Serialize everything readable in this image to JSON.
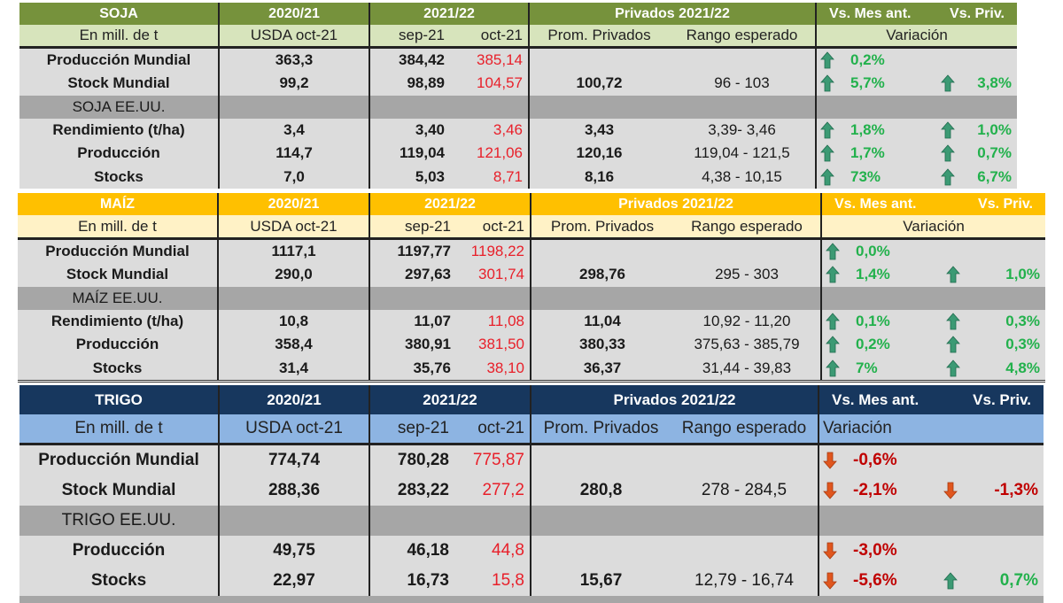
{
  "colors": {
    "up_arrow": "#3c9a74",
    "down_arrow": "#e0561e",
    "up_text": "#22b14c",
    "down_text": "#c00000",
    "oct_text": "#e8202a"
  },
  "tables": [
    {
      "id": "soja",
      "colors": {
        "header_bg": "#76923c",
        "header_text": "#ffffff",
        "sub_bg": "#d7e4bc"
      },
      "header": {
        "title": "SOJA",
        "y2020": "2020/21",
        "y2021": "2021/22",
        "priv": "Privados 2021/22",
        "var1": "Vs. Mes  ant.",
        "var2": "Vs. Priv."
      },
      "subheader": {
        "unit": "En mill. de t",
        "usda": "USDA oct-21",
        "sep": "sep-21",
        "oct": "oct-21",
        "prom": "Prom. Privados",
        "rango": "Rango esperado",
        "var": "Variación"
      },
      "rows": [
        {
          "label": "Producción Mundial",
          "usda": "363,3",
          "sep": "384,42",
          "oct": "385,14",
          "prom": "",
          "rango": "",
          "v1": {
            "dir": "up",
            "value": "0,2%"
          },
          "v2": null
        },
        {
          "label": "Stock Mundial",
          "usda": "99,2",
          "sep": "98,89",
          "oct": "104,57",
          "prom": "100,72",
          "rango": "96 - 103",
          "v1": {
            "dir": "up",
            "value": "5,7%"
          },
          "v2": {
            "dir": "up",
            "value": "3,8%"
          }
        },
        {
          "section": "SOJA EE.UU."
        },
        {
          "label": "Rendimiento (t/ha)",
          "usda": "3,4",
          "sep": "3,40",
          "oct": "3,46",
          "prom": "3,43",
          "rango": "3,39- 3,46",
          "v1": {
            "dir": "up",
            "value": "1,8%"
          },
          "v2": {
            "dir": "up",
            "value": "1,0%"
          }
        },
        {
          "label": "Producción",
          "usda": "114,7",
          "sep": "119,04",
          "oct": "121,06",
          "prom": "120,16",
          "rango": "119,04 - 121,5",
          "v1": {
            "dir": "up",
            "value": "1,7%"
          },
          "v2": {
            "dir": "up",
            "value": "0,7%"
          }
        },
        {
          "label": "Stocks",
          "usda": "7,0",
          "sep": "5,03",
          "oct": "8,71",
          "prom": "8,16",
          "rango": "4,38 - 10,15",
          "v1": {
            "dir": "up",
            "value": "73%"
          },
          "v2": {
            "dir": "up",
            "value": "6,7%"
          }
        }
      ]
    },
    {
      "id": "maiz",
      "colors": {
        "header_bg": "#ffc000",
        "header_text": "#ffffff",
        "sub_bg": "#fff2c6"
      },
      "header": {
        "title": "MAÍZ",
        "y2020": "2020/21",
        "y2021": "2021/22",
        "priv": "Privados 2021/22",
        "var1": "Vs. Mes  ant.",
        "var2": "Vs. Priv."
      },
      "subheader": {
        "unit": "En mill. de t",
        "usda": "USDA oct-21",
        "sep": "sep-21",
        "oct": "oct-21",
        "prom": "Prom. Privados",
        "rango": "Rango esperado",
        "var": "Variación"
      },
      "rows": [
        {
          "label": "Producción Mundial",
          "usda": "1117,1",
          "sep": "1197,77",
          "oct": "1198,22",
          "prom": "",
          "rango": "",
          "v1": {
            "dir": "up",
            "value": "0,0%"
          },
          "v2": null
        },
        {
          "label": "Stock Mundial",
          "usda": "290,0",
          "sep": "297,63",
          "oct": "301,74",
          "prom": "298,76",
          "rango": "295 - 303",
          "v1": {
            "dir": "up",
            "value": "1,4%"
          },
          "v2": {
            "dir": "up",
            "value": "1,0%"
          }
        },
        {
          "section": "MAÍZ EE.UU."
        },
        {
          "label": "Rendimiento (t/ha)",
          "usda": "10,8",
          "sep": "11,07",
          "oct": "11,08",
          "prom": "11,04",
          "rango": "10,92 - 11,20",
          "v1": {
            "dir": "up",
            "value": "0,1%"
          },
          "v2": {
            "dir": "up",
            "value": "0,3%"
          }
        },
        {
          "label": "Producción",
          "usda": "358,4",
          "sep": "380,91",
          "oct": "381,50",
          "prom": "380,33",
          "rango": "375,63 - 385,79",
          "v1": {
            "dir": "up",
            "value": "0,2%"
          },
          "v2": {
            "dir": "up",
            "value": "0,3%"
          }
        },
        {
          "label": "Stocks",
          "usda": "31,4",
          "sep": "35,76",
          "oct": "38,10",
          "prom": "36,37",
          "rango": "31,44 - 39,83",
          "v1": {
            "dir": "up",
            "value": "7%"
          },
          "v2": {
            "dir": "up",
            "value": "4,8%"
          }
        }
      ]
    },
    {
      "id": "trigo",
      "colors": {
        "header_bg": "#17375e",
        "header_text": "#ffffff",
        "sub_bg": "#8db4e2"
      },
      "header": {
        "title": "TRIGO",
        "y2020": "2020/21",
        "y2021": "2021/22",
        "priv": "Privados 2021/22",
        "var1": "Vs. Mes  ant.",
        "var2": "Vs. Priv."
      },
      "subheader": {
        "unit": "En mill. de t",
        "usda": "USDA oct-21",
        "sep": "sep-21",
        "oct": "oct-21",
        "prom": "Prom. Privados",
        "rango": "Rango esperado",
        "var": "Variación"
      },
      "rows": [
        {
          "label": "Producción Mundial",
          "usda": "774,74",
          "sep": "780,28",
          "oct": "775,87",
          "prom": "",
          "rango": "",
          "v1": {
            "dir": "down",
            "value": "-0,6%"
          },
          "v2": null
        },
        {
          "label": "Stock Mundial",
          "usda": "288,36",
          "sep": "283,22",
          "oct": "277,2",
          "prom": "280,8",
          "rango": "278 - 284,5",
          "v1": {
            "dir": "down",
            "value": "-2,1%"
          },
          "v2": {
            "dir": "down",
            "value": "-1,3%"
          }
        },
        {
          "section": "TRIGO EE.UU."
        },
        {
          "label": "Producción",
          "usda": "49,75",
          "sep": "46,18",
          "oct": "44,8",
          "prom": "",
          "rango": "",
          "v1": {
            "dir": "down",
            "value": "-3,0%"
          },
          "v2": null
        },
        {
          "label": "Stocks",
          "usda": "22,97",
          "sep": "16,73",
          "oct": "15,8",
          "prom": "15,67",
          "rango": "12,79 - 16,74",
          "v1": {
            "dir": "down",
            "value": "-5,6%"
          },
          "v2": {
            "dir": "up",
            "value": "0,7%"
          }
        }
      ]
    }
  ]
}
